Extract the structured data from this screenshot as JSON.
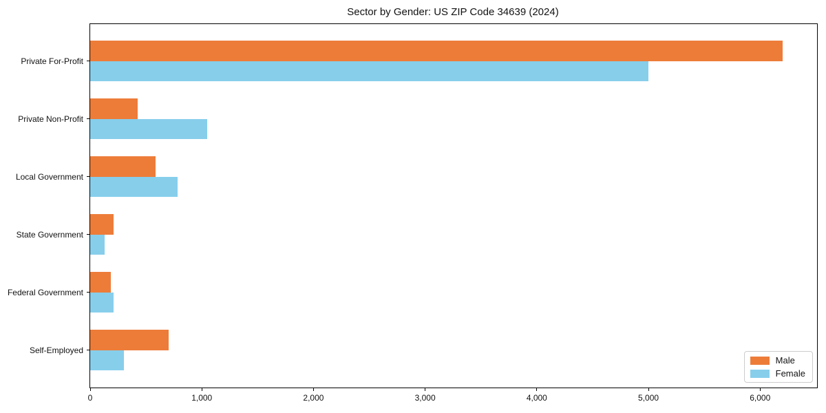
{
  "chart_data": {
    "type": "bar",
    "orientation": "horizontal",
    "title": "Sector by Gender: US ZIP Code 34639 (2024)",
    "categories": [
      "Private For-Profit",
      "Private Non-Profit",
      "Local Government",
      "State Government",
      "Federal Government",
      "Self-Employed"
    ],
    "series": [
      {
        "name": "Male",
        "color": "#ED7C39",
        "values": [
          6200,
          425,
          585,
          210,
          185,
          700
        ]
      },
      {
        "name": "Female",
        "color": "#87CEEB",
        "values": [
          5000,
          1050,
          780,
          130,
          210,
          300
        ]
      }
    ],
    "xlabel": "",
    "ylabel": "",
    "xlim": [
      0,
      6510
    ],
    "xticks": [
      0,
      1000,
      2000,
      3000,
      4000,
      5000,
      6000
    ],
    "xtick_labels": [
      "0",
      "1,000",
      "2,000",
      "3,000",
      "4,000",
      "5,000",
      "6,000"
    ],
    "legend": {
      "position": "lower right",
      "labels": [
        "Male",
        "Female"
      ]
    },
    "grid": false
  }
}
